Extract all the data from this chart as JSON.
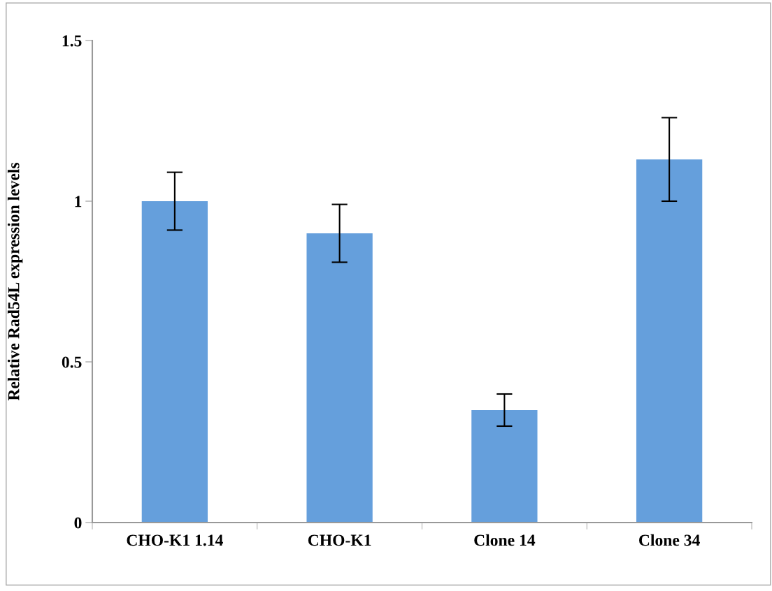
{
  "chart_data": {
    "type": "bar",
    "ylabel": "Relative Rad54L expression levels",
    "categories": [
      "CHO-K1 1.14",
      "CHO-K1",
      "Clone 14",
      "Clone 34"
    ],
    "values": [
      1.0,
      0.9,
      0.35,
      1.13
    ],
    "errors": [
      0.09,
      0.09,
      0.05,
      0.13
    ],
    "color": "#659fdc",
    "ylim": [
      0,
      1.5
    ],
    "yticks": [
      0,
      0.5,
      1,
      1.5
    ],
    "grid": false,
    "legend": false
  }
}
